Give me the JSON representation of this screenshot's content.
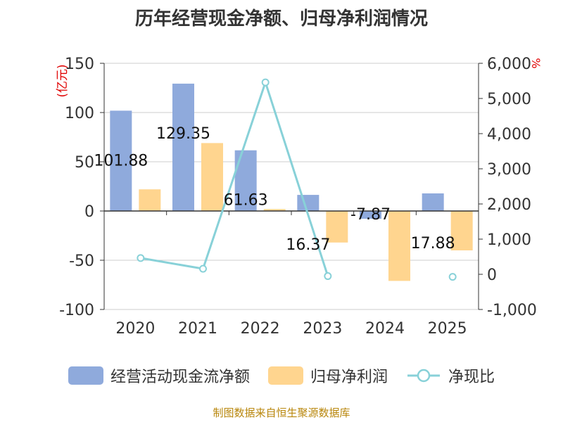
{
  "title": "历年经营现金净额、归母净利润情况",
  "source": "制图数据来自恒生聚源数据库",
  "colors": {
    "cash": "#8faadc",
    "profit": "#ffd58f",
    "ratio": "#88d1d8",
    "axis": "#333333",
    "grid": "#cccccc",
    "unit_right": "#e00000"
  },
  "chart_data": {
    "type": "bar",
    "categories": [
      "2020",
      "2021",
      "2022",
      "2023",
      "2024",
      "2025"
    ],
    "ylabel": "(亿元)",
    "y2label": "%",
    "ylim": [
      -100,
      150
    ],
    "yticks": [
      -100,
      -50,
      0,
      50,
      100,
      150
    ],
    "ytick_labels": [
      "-100",
      "-50",
      "0",
      "50",
      "100",
      "150"
    ],
    "y2lim": [
      -1000,
      6000
    ],
    "y2ticks": [
      -1000,
      0,
      1000,
      2000,
      3000,
      4000,
      5000,
      6000
    ],
    "y2tick_labels": [
      "-1,000",
      "0",
      "1,000",
      "2,000",
      "3,000",
      "4,000",
      "5,000",
      "6,000"
    ],
    "series": [
      {
        "name": "经营活动现金流净额",
        "type": "bar",
        "axis": "left",
        "values": [
          101.88,
          129.35,
          61.63,
          16.37,
          -7.87,
          17.88
        ],
        "labels": [
          "101.88",
          "129.35",
          "61.63",
          "16.37",
          "-7.87",
          "17.88"
        ]
      },
      {
        "name": "归母净利润",
        "type": "bar",
        "axis": "left",
        "values": [
          22,
          69,
          2,
          -32,
          -71,
          -40
        ]
      },
      {
        "name": "净现比",
        "type": "line",
        "axis": "right",
        "values": [
          463,
          158,
          5458,
          -51,
          null,
          -72
        ]
      }
    ]
  }
}
